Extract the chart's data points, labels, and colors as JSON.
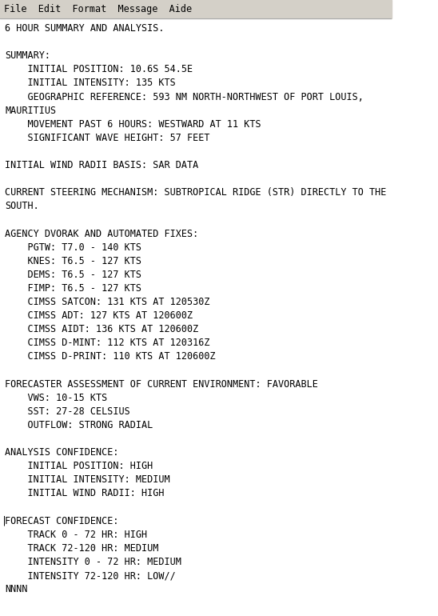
{
  "background_color": "#ffffff",
  "text_color": "#000000",
  "font_family": "DejaVu Sans Mono",
  "font_size": 8.5,
  "lines": [
    "6 HOUR SUMMARY AND ANALYSIS.",
    "",
    "SUMMARY:",
    "    INITIAL POSITION: 10.6S 54.5E",
    "    INITIAL INTENSITY: 135 KTS",
    "    GEOGRAPHIC REFERENCE: 593 NM NORTH-NORTHWEST OF PORT LOUIS,",
    "MAURITIUS",
    "    MOVEMENT PAST 6 HOURS: WESTWARD AT 11 KTS",
    "    SIGNIFICANT WAVE HEIGHT: 57 FEET",
    "",
    "INITIAL WIND RADII BASIS: SAR DATA",
    "",
    "CURRENT STEERING MECHANISM: SUBTROPICAL RIDGE (STR) DIRECTLY TO THE",
    "SOUTH.",
    "",
    "AGENCY DVORAK AND AUTOMATED FIXES:",
    "    PGTW: T7.0 - 140 KTS",
    "    KNES: T6.5 - 127 KTS",
    "    DEMS: T6.5 - 127 KTS",
    "    FIMP: T6.5 - 127 KTS",
    "    CIMSS SATCON: 131 KTS AT 120530Z",
    "    CIMSS ADT: 127 KTS AT 120600Z",
    "    CIMSS AIDT: 136 KTS AT 120600Z",
    "    CIMSS D-MINT: 112 KTS AT 120316Z",
    "    CIMSS D-PRINT: 110 KTS AT 120600Z",
    "",
    "FORECASTER ASSESSMENT OF CURRENT ENVIRONMENT: FAVORABLE",
    "    VWS: 10-15 KTS",
    "    SST: 27-28 CELSIUS",
    "    OUTFLOW: STRONG RADIAL",
    "",
    "ANALYSIS CONFIDENCE:",
    "    INITIAL POSITION: HIGH",
    "    INITIAL INTENSITY: MEDIUM",
    "    INITIAL WIND RADII: HIGH",
    "",
    "FORECAST CONFIDENCE:",
    "    TRACK 0 - 72 HR: HIGH",
    "    TRACK 72-120 HR: MEDIUM",
    "    INTENSITY 0 - 72 HR: MEDIUM",
    "    INTENSITY 72-120 HR: LOW//",
    "NNNN"
  ],
  "top_bar_text": "File  Edit  Format  Message  Aide",
  "top_bar_color": "#d4d0c8",
  "top_bar_height": 0.03,
  "separator_color": "#aaaaaa",
  "separator_linewidth": 0.8
}
